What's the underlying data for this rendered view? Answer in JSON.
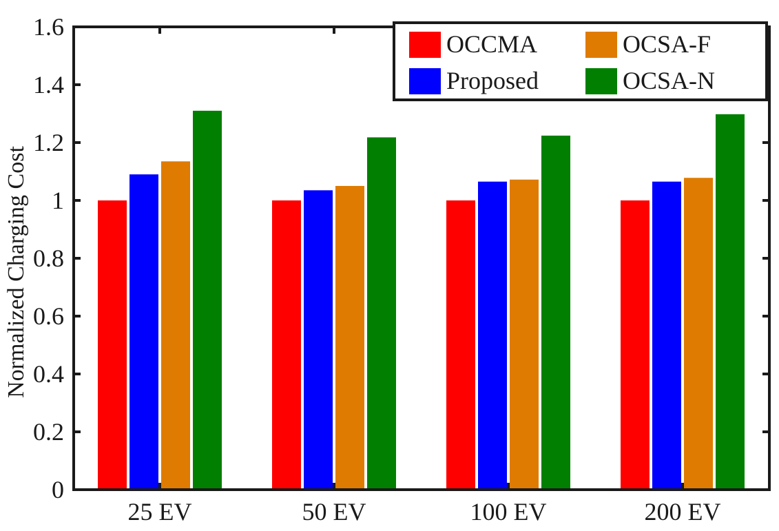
{
  "chart_data": {
    "type": "bar",
    "title": "",
    "xlabel": "",
    "ylabel": "Normalized Charging Cost",
    "ylim": [
      0,
      1.6
    ],
    "yticks": [
      "0",
      "0.2",
      "0.4",
      "0.6",
      "0.8",
      "1",
      "1.2",
      "1.4",
      "1.6"
    ],
    "ytick_values": [
      0,
      0.2,
      0.4,
      0.6,
      0.8,
      1.0,
      1.2,
      1.4,
      1.6
    ],
    "categories": [
      "25 EV",
      "50 EV",
      "100 EV",
      "200 EV"
    ],
    "series": [
      {
        "name": "OCCMA",
        "color": "#ff0000",
        "values": [
          1.0,
          1.0,
          1.0,
          1.0
        ]
      },
      {
        "name": "Proposed",
        "color": "#0000ff",
        "values": [
          1.09,
          1.035,
          1.065,
          1.065
        ]
      },
      {
        "name": "OCSA-F",
        "color": "#df7b00",
        "values": [
          1.135,
          1.05,
          1.072,
          1.078
        ]
      },
      {
        "name": "OCSA-N",
        "color": "#007f00",
        "values": [
          1.31,
          1.218,
          1.224,
          1.298
        ]
      }
    ],
    "legend": {
      "position": "top-right",
      "entries": [
        "OCCMA",
        "OCSA-F",
        "Proposed",
        "OCSA-N"
      ]
    },
    "grid": false
  }
}
